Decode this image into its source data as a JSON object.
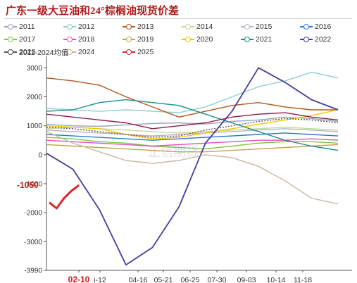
{
  "chart_data": {
    "type": "line",
    "title": "广东一级大豆油和24°棕榈油现货价差",
    "y_ticks": [
      3000,
      2000,
      1000,
      0,
      -1000,
      -2000,
      -3000,
      -3990
    ],
    "ylim": [
      -3990,
      3300
    ],
    "x_ticks": [
      "02-10",
      "03-12",
      "04-16",
      "05-21",
      "06-25",
      "07-30",
      "09-03",
      "10-14",
      "11-18"
    ],
    "x_ticks_display": [
      "02-10",
      "i-12",
      "04-16",
      "05-21",
      "06-25",
      "07-30",
      "09-03",
      "10-14",
      "11-18"
    ],
    "highlight_x_tick": "02-10",
    "annotation": "-1050",
    "legend_position": "top",
    "grid": false,
    "series": [
      {
        "name": "2011",
        "color": "#9aa6b7",
        "values": [
          1050,
          1000,
          980,
          1030,
          1080,
          1100,
          1060,
          1150,
          1200,
          1300,
          1250,
          1150
        ]
      },
      {
        "name": "2012",
        "color": "#8ecdd1",
        "values": [
          1600,
          1550,
          1500,
          1550,
          1500,
          1450,
          1650,
          2000,
          2350,
          2550,
          2850,
          2650
        ]
      },
      {
        "name": "2013",
        "color": "#b0581c",
        "values": [
          2650,
          2550,
          2400,
          2000,
          1650,
          1300,
          1500,
          1700,
          1800,
          1650,
          1550,
          1550
        ]
      },
      {
        "name": "2014",
        "color": "#c3d99a",
        "values": [
          900,
          950,
          900,
          850,
          800,
          750,
          800,
          850,
          900,
          950,
          900,
          850
        ]
      },
      {
        "name": "2015",
        "color": "#b8b0c8",
        "values": [
          850,
          800,
          750,
          700,
          650,
          700,
          750,
          800,
          850,
          900,
          850,
          800
        ]
      },
      {
        "name": "2016",
        "color": "#2e78c8",
        "values": [
          700,
          650,
          600,
          550,
          500,
          550,
          600,
          650,
          700,
          750,
          700,
          650
        ]
      },
      {
        "name": "2017",
        "color": "#7fc64a",
        "values": [
          600,
          550,
          450,
          400,
          300,
          250,
          200,
          300,
          400,
          450,
          450,
          400
        ]
      },
      {
        "name": "2018",
        "color": "#e64ec0",
        "values": [
          500,
          450,
          400,
          350,
          300,
          350,
          400,
          450,
          500,
          500,
          550,
          500
        ]
      },
      {
        "name": "2019",
        "color": "#c9a24a",
        "values": [
          350,
          300,
          250,
          200,
          150,
          100,
          100,
          150,
          200,
          250,
          300,
          350
        ]
      },
      {
        "name": "2020",
        "color": "#f0c800",
        "values": [
          1000,
          950,
          900,
          700,
          550,
          600,
          750,
          900,
          1050,
          1200,
          1350,
          1550
        ]
      },
      {
        "name": "2021",
        "color": "#1a8e8e",
        "values": [
          1500,
          1550,
          1800,
          1900,
          1800,
          1700,
          1400,
          1100,
          800,
          500,
          300,
          150
        ]
      },
      {
        "name": "2022",
        "color": "#4a3a9e",
        "values": [
          50,
          -500,
          -1900,
          -3800,
          -3200,
          -1800,
          400,
          1500,
          3000,
          2500,
          1900,
          1550
        ]
      },
      {
        "name": "2023",
        "color": "#8e1a4e",
        "values": [
          1400,
          1300,
          1200,
          1100,
          900,
          1000,
          1100,
          1300,
          1400,
          1450,
          1300,
          1200
        ]
      },
      {
        "name": "2024",
        "color": "#c8b8a0",
        "values": [
          800,
          400,
          100,
          -200,
          -300,
          -200,
          0,
          -100,
          -400,
          -900,
          -1500,
          -1700
        ]
      },
      {
        "name": "2025",
        "color": "#d62728",
        "values": [
          -1650,
          -1850,
          -1500,
          -1250,
          -1050
        ]
      },
      {
        "name": "2011-2024均值",
        "color": "#555555",
        "values": [
          950,
          900,
          800,
          700,
          600,
          650,
          850,
          1000,
          1150,
          1250,
          1200,
          1100
        ]
      }
    ]
  },
  "watermark": "正信期货"
}
